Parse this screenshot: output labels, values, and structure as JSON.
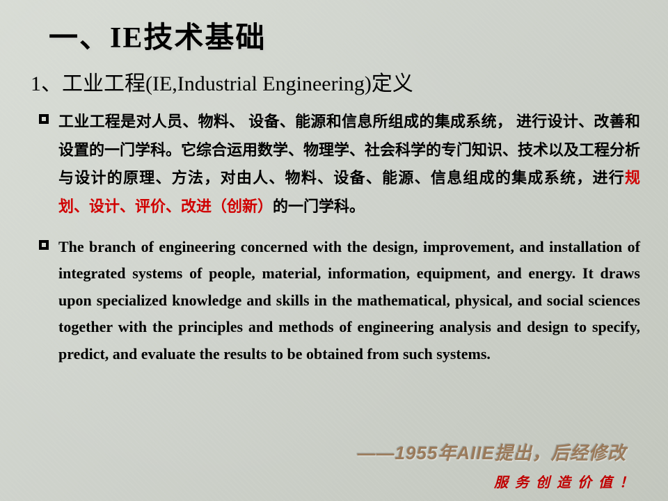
{
  "title": "一、IE技术基础",
  "subtitle": {
    "prefix": "1、工业工程",
    "en": "(IE,Industrial Engineering)",
    "suffix": "定义"
  },
  "paragraph1": {
    "part1": "工业工程是对人员、物料、 设备、能源和信息所组成的集成系统， 进行设计、改善和设置的一门学科。它综合运用数学、物理学、社会科学的专门知识、技术以及工程分析与设计的原理、方法，对由人、物料、设备、能源、信息组成的集成系统，进行",
    "highlight": "规划、设计、评价、改进（创新）",
    "part2": "的一门学科。"
  },
  "paragraph2": "The branch of engineering concerned with the design, improvement, and installation of integrated systems of people, material, information, equipment, and energy. It draws upon specialized knowledge and skills in the mathematical, physical, and social sciences together with the principles and methods of engineering analysis and design to specify, predict, and evaluate the results to be obtained from such systems.",
  "attribution": "——1955年AIIE提出，后经修改",
  "footer": "服务创造价值！",
  "colors": {
    "highlight": "#d00000",
    "attribution": "#9a7a5a",
    "footer": "#c00000",
    "text": "#000000"
  }
}
